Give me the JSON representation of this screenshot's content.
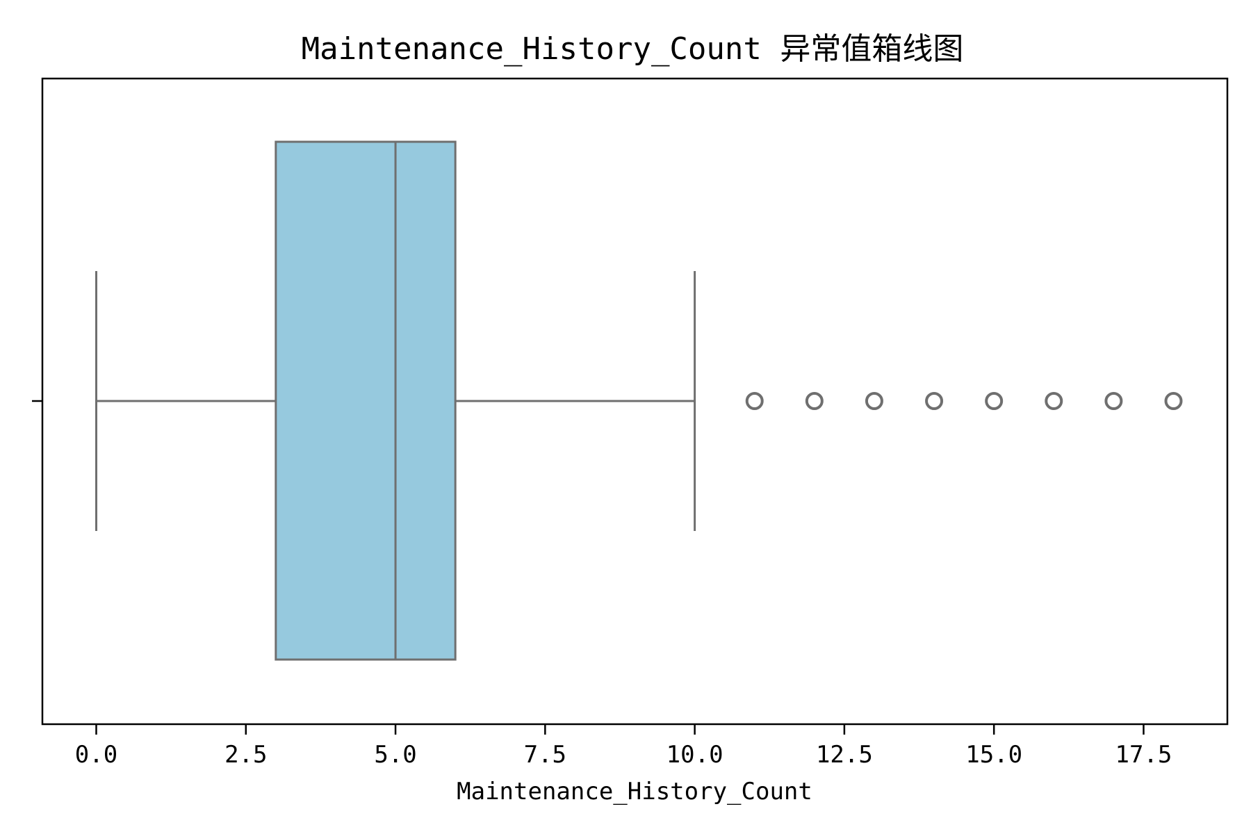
{
  "chart_data": {
    "type": "box",
    "title": "Maintenance_History_Count 异常值箱线图",
    "xlabel": "Maintenance_History_Count",
    "ylabel": "",
    "orientation": "horizontal",
    "xlim": [
      -0.9,
      18.9
    ],
    "ticks": [
      0.0,
      2.5,
      5.0,
      7.5,
      10.0,
      12.5,
      15.0,
      17.5
    ],
    "tick_labels": [
      "0.0",
      "2.5",
      "5.0",
      "7.5",
      "10.0",
      "12.5",
      "15.0",
      "17.5"
    ],
    "grid": false,
    "box": {
      "whisker_low": 0,
      "q1": 3,
      "median": 5,
      "q3": 6,
      "whisker_high": 10
    },
    "outliers": [
      11,
      12,
      13,
      14,
      15,
      16,
      17,
      18
    ],
    "colors": {
      "box_fill": "#96C9DE",
      "line": "#6f6f6f",
      "frame": "#000000"
    }
  }
}
